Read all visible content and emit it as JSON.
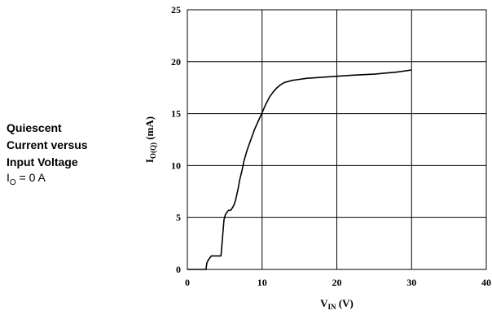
{
  "caption": {
    "title": "Quiescent\nCurrent versus\nInput Voltage",
    "condition_main": "I",
    "condition_sub": "O",
    "condition_rest": " = 0 A"
  },
  "chart_data": {
    "type": "line",
    "title": "",
    "xlabel_main": "V",
    "xlabel_sub": "IN",
    "xlabel_unit": " (V)",
    "ylabel_main": "I",
    "ylabel_sub": "O(Q)",
    "ylabel_unit": " (mA)",
    "xlim": [
      0,
      40
    ],
    "ylim": [
      0,
      25
    ],
    "x_ticks": [
      0,
      10,
      20,
      30,
      40
    ],
    "y_ticks": [
      0,
      5,
      10,
      15,
      20,
      25
    ],
    "grid": true,
    "legend": "none",
    "line_color": "#000000",
    "series": [
      {
        "x": [
          0,
          2.5,
          2.6,
          2.8,
          3.0,
          3.2,
          3.5,
          4.0,
          4.5,
          4.7,
          4.9,
          5.1,
          5.3,
          5.5,
          5.8,
          6.0,
          6.3,
          6.5,
          6.8,
          7.0,
          7.3,
          7.6,
          8.0,
          8.5,
          9.0,
          9.5,
          10.0,
          10.5,
          11.0,
          11.5,
          12.0,
          12.5,
          13.0,
          14.0,
          15.0,
          16.0,
          18.0,
          20.0,
          22.0,
          25.0,
          28.0,
          30.0
        ],
        "y": [
          0,
          0,
          0.6,
          0.9,
          1.1,
          1.3,
          1.3,
          1.3,
          1.3,
          3.0,
          4.8,
          5.3,
          5.5,
          5.7,
          5.7,
          5.9,
          6.3,
          6.8,
          7.8,
          8.6,
          9.5,
          10.5,
          11.5,
          12.5,
          13.5,
          14.3,
          15.1,
          15.9,
          16.6,
          17.1,
          17.5,
          17.8,
          18.0,
          18.2,
          18.3,
          18.4,
          18.5,
          18.6,
          18.7,
          18.8,
          19.0,
          19.2
        ]
      }
    ]
  }
}
